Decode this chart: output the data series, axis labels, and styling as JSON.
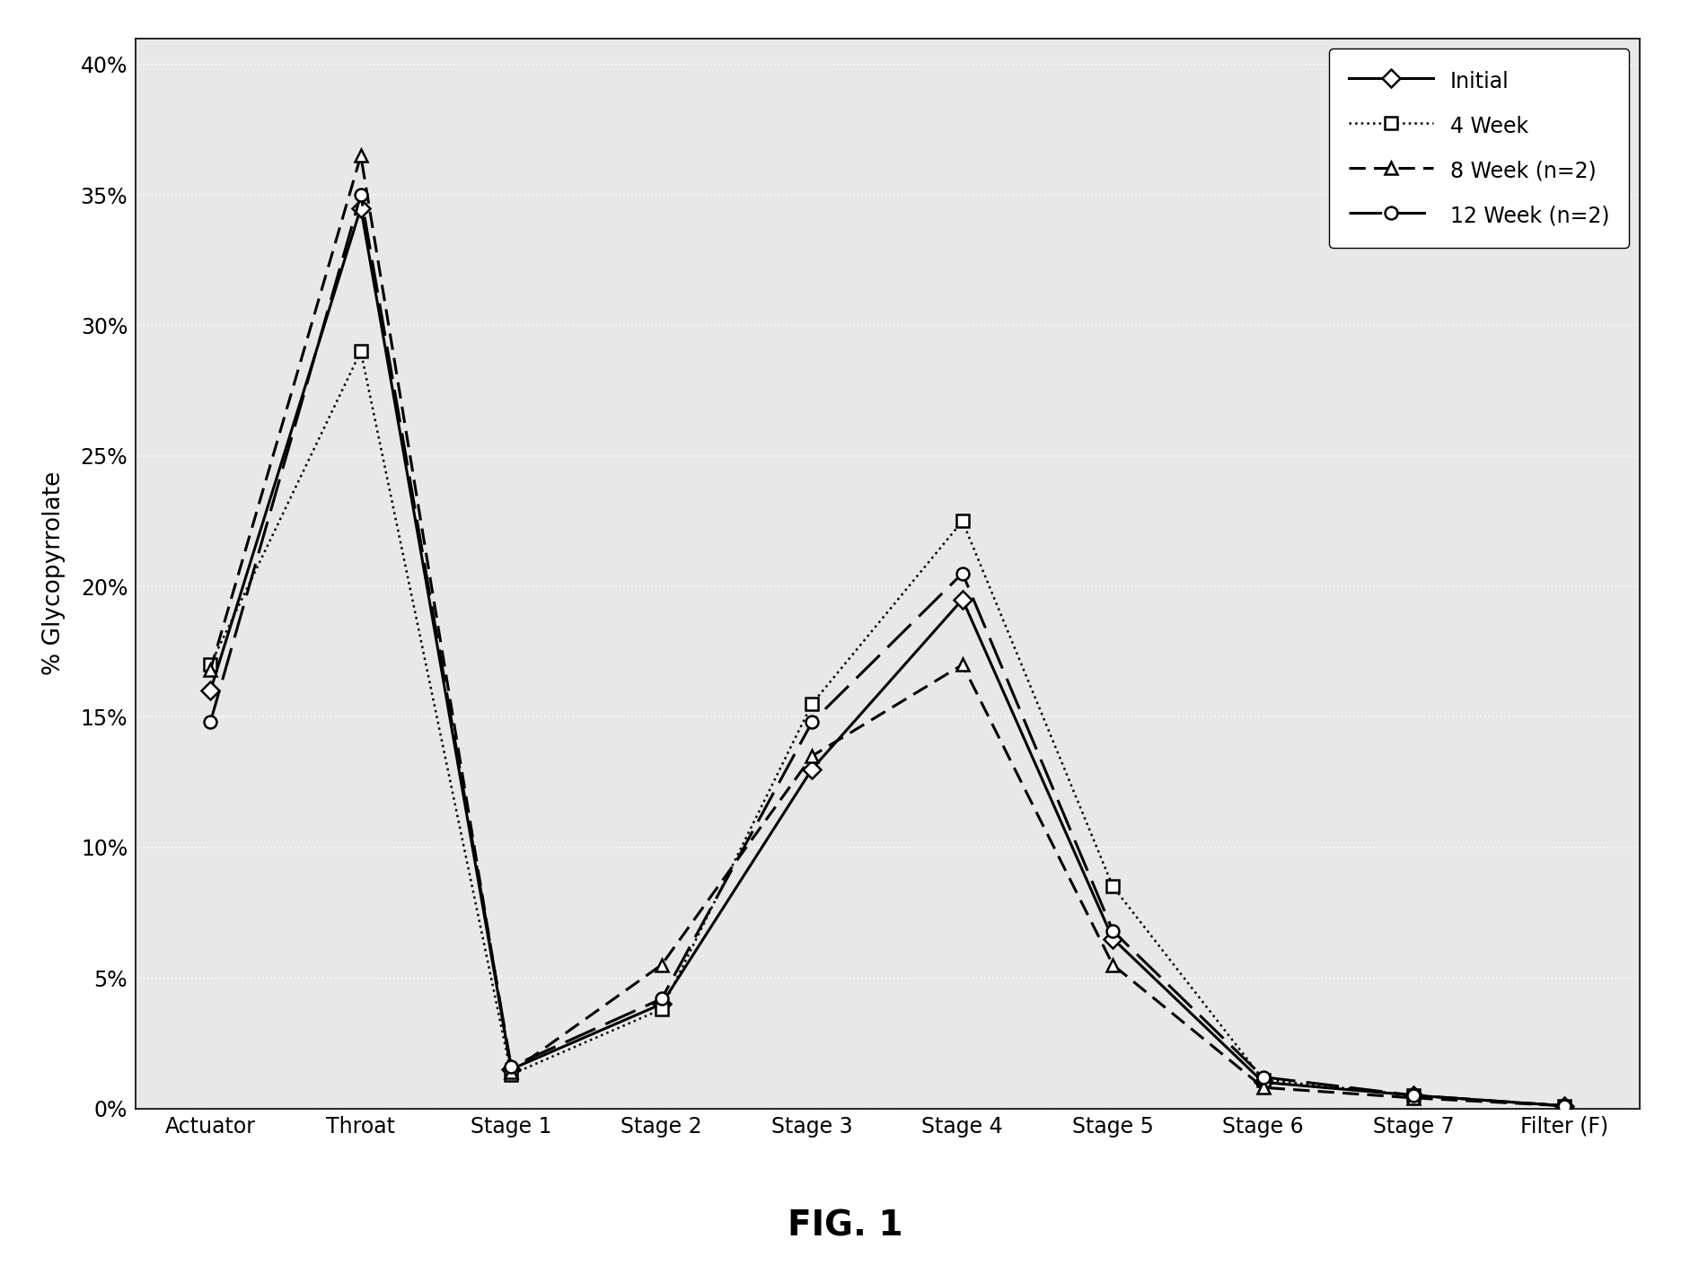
{
  "categories": [
    "Actuator",
    "Throat",
    "Stage 1",
    "Stage 2",
    "Stage 3",
    "Stage 4",
    "Stage 5",
    "Stage 6",
    "Stage 7",
    "Filter (F)"
  ],
  "series": {
    "Initial": [
      0.16,
      0.345,
      0.015,
      0.04,
      0.13,
      0.195,
      0.065,
      0.01,
      0.005,
      0.001
    ],
    "4 Week": [
      0.17,
      0.29,
      0.013,
      0.038,
      0.155,
      0.225,
      0.085,
      0.011,
      0.005,
      0.001
    ],
    "8 Week (n=2)": [
      0.168,
      0.365,
      0.014,
      0.055,
      0.135,
      0.17,
      0.055,
      0.008,
      0.004,
      0.001
    ],
    "12 Week (n=2)": [
      0.148,
      0.35,
      0.016,
      0.042,
      0.148,
      0.205,
      0.068,
      0.012,
      0.005,
      0.001
    ]
  },
  "ylabel": "% Glycopyrrolate",
  "ylim": [
    0,
    0.41
  ],
  "yticks": [
    0,
    0.05,
    0.1,
    0.15,
    0.2,
    0.25,
    0.3,
    0.35,
    0.4
  ],
  "ytick_labels": [
    "0%",
    "5%",
    "10%",
    "15%",
    "20%",
    "25%",
    "30%",
    "35%",
    "40%"
  ],
  "title": "FIG. 1",
  "outer_bg": "#ffffff",
  "plot_bg": "#e8e8e8",
  "legend_order": [
    "Initial",
    "4 Week",
    "8 Week (n=2)",
    "12 Week (n=2)"
  ],
  "grid_color": "#ffffff",
  "grid_linewidth": 1.2
}
